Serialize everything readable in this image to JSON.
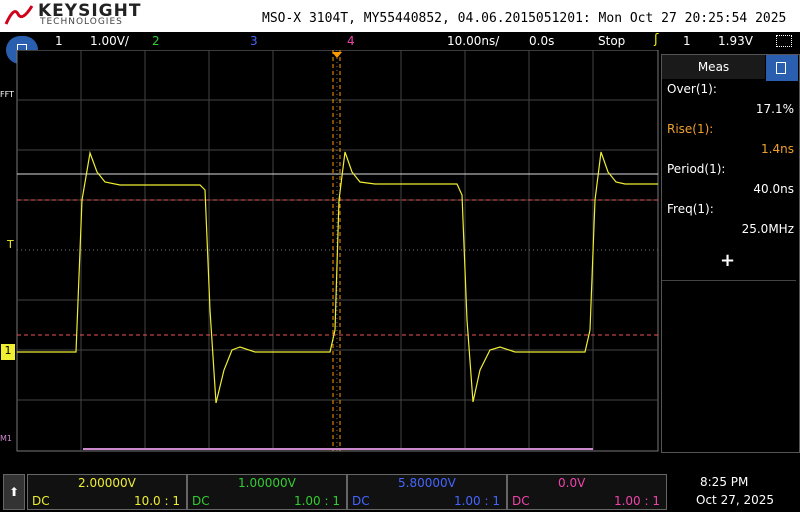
{
  "header": {
    "brand": "KEYSIGHT",
    "subtitle": "TECHNOLOGIES",
    "title": "MSO-X 3104T, MY55440852, 04.06.2015051201: Mon Oct 27 20:25:54 2025"
  },
  "status_bar": {
    "ch1": "1",
    "ch1_scale": "1.00V/",
    "ch2": "2",
    "ch3": "3",
    "ch4": "4",
    "timebase": "10.00ns/",
    "delay": "0.0s",
    "run_state": "Stop",
    "trigger_source": "1",
    "trigger_level": "1.93V"
  },
  "side_panel": {
    "title": "Meas",
    "measurements": [
      {
        "label": "Over(1):",
        "value": "17.1%"
      },
      {
        "label": "Rise(1):",
        "value": "1.4ns"
      },
      {
        "label": "Period(1):",
        "value": "40.0ns"
      },
      {
        "label": "Freq(1):",
        "value": "25.0MHz"
      }
    ]
  },
  "markers": {
    "fft": "FFT",
    "trigger": "T",
    "ch1": "1",
    "math": "M1"
  },
  "channels": [
    {
      "offset": "2.00000V",
      "coupling": "DC",
      "probe": "10.0 : 1"
    },
    {
      "offset": "1.00000V",
      "coupling": "DC",
      "probe": "1.00 : 1"
    },
    {
      "offset": "5.80000V",
      "coupling": "DC",
      "probe": "1.00 : 1"
    },
    {
      "offset": "0.0V",
      "coupling": "DC",
      "probe": "1.00 : 1"
    }
  ],
  "clock": {
    "time": "8:25 PM",
    "date": "Oct 27, 2025"
  }
}
